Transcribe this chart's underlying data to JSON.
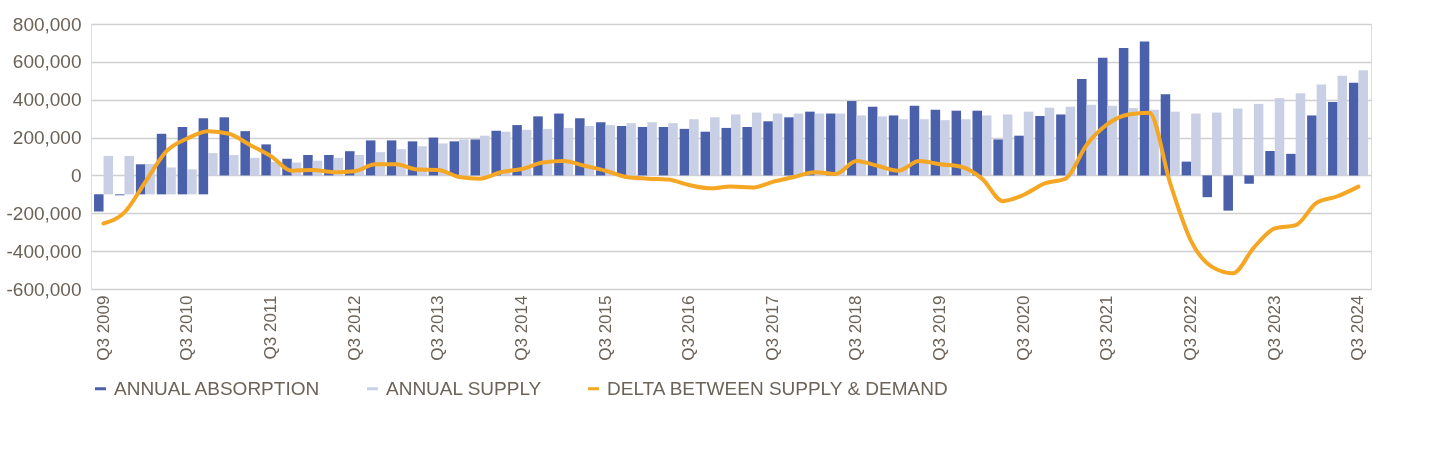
{
  "chart_data": {
    "type": "bar",
    "categories": [
      "Q3 2009",
      null,
      null,
      null,
      "Q3 2010",
      null,
      null,
      null,
      "Q3 2011",
      null,
      null,
      null,
      "Q3 2012",
      null,
      null,
      null,
      "Q3 2013",
      null,
      null,
      null,
      "Q3 2014",
      null,
      null,
      null,
      "Q3 2015",
      null,
      null,
      null,
      "Q3 2016",
      null,
      null,
      null,
      "Q3 2017",
      null,
      null,
      null,
      "Q3 2018",
      null,
      null,
      null,
      "Q3 2019",
      null,
      null,
      null,
      "Q3 2020",
      null,
      null,
      null,
      "Q3 2021",
      null,
      null,
      null,
      "Q3 2022",
      null,
      null,
      null,
      "Q3 2023",
      null,
      null,
      null,
      "Q3 2024"
    ],
    "series": [
      {
        "name": "ANNUAL ABSORPTION",
        "type": "bar",
        "color": "#4a60ab",
        "base": [
          -100000,
          -100000,
          -100000,
          -100000,
          -100000,
          -100000,
          0,
          0,
          0,
          0,
          0,
          0,
          0,
          0,
          0,
          0,
          0,
          0,
          0,
          0,
          0,
          0,
          0,
          0,
          0,
          0,
          0,
          0,
          0,
          0,
          0,
          0,
          0,
          0,
          0,
          0,
          0,
          0,
          0,
          0,
          0,
          0,
          0,
          0,
          0,
          0,
          0,
          0,
          0,
          0,
          0,
          0,
          0,
          0,
          0,
          0,
          0,
          0,
          0,
          0,
          0
        ],
        "values": [
          -90000,
          -5000,
          159000,
          320000,
          356000,
          402000,
          307000,
          234000,
          164000,
          88000,
          108000,
          108000,
          128000,
          185000,
          185000,
          180000,
          200000,
          180000,
          190000,
          236000,
          266000,
          312000,
          327000,
          302000,
          281000,
          261000,
          256000,
          256000,
          246000,
          231000,
          251000,
          256000,
          286000,
          307000,
          337000,
          327000,
          393000,
          363000,
          317000,
          368000,
          347000,
          342000,
          342000,
          190000,
          210000,
          314000,
          322000,
          510000,
          622000,
          673000,
          708000,
          429000,
          73000,
          -115000,
          -186000,
          -44000,
          129000,
          114000,
          317000,
          388000,
          490000
        ]
      },
      {
        "name": "ANNUAL SUPPLY",
        "type": "bar",
        "color": "#c9cfe4",
        "base": [
          -100000,
          -100000,
          -100000,
          -100000,
          -100000,
          0,
          0,
          0,
          0,
          0,
          0,
          0,
          0,
          0,
          0,
          0,
          0,
          0,
          0,
          0,
          0,
          0,
          0,
          0,
          0,
          0,
          0,
          0,
          0,
          0,
          0,
          0,
          0,
          0,
          0,
          0,
          0,
          0,
          0,
          0,
          0,
          0,
          0,
          0,
          0,
          0,
          0,
          0,
          0,
          0,
          0,
          0,
          0,
          0,
          0,
          0,
          0,
          0,
          0,
          0,
          0
        ],
        "values": [
          203000,
          203000,
          160000,
          142000,
          132000,
          118000,
          108000,
          93000,
          72000,
          68000,
          78000,
          93000,
          108000,
          123000,
          139000,
          154000,
          169000,
          190000,
          210000,
          231000,
          241000,
          246000,
          251000,
          261000,
          266000,
          276000,
          281000,
          276000,
          297000,
          307000,
          322000,
          332000,
          327000,
          327000,
          327000,
          327000,
          317000,
          312000,
          297000,
          297000,
          292000,
          297000,
          317000,
          322000,
          337000,
          358000,
          363000,
          373000,
          368000,
          356000,
          347000,
          337000,
          327000,
          332000,
          353000,
          378000,
          408000,
          434000,
          480000,
          527000,
          556000
        ]
      },
      {
        "name": "DELTA BETWEEN SUPPLY & DEMAND",
        "type": "line",
        "color": "#f5a623",
        "values": [
          -254000,
          -195000,
          -34000,
          127000,
          195000,
          234000,
          220000,
          161000,
          102000,
          25000,
          29000,
          17000,
          22000,
          59000,
          59000,
          31000,
          29000,
          -8000,
          -17000,
          17000,
          34000,
          68000,
          76000,
          51000,
          25000,
          -8000,
          -17000,
          -22000,
          -51000,
          -68000,
          -59000,
          -64000,
          -34000,
          -8000,
          17000,
          8000,
          76000,
          51000,
          25000,
          76000,
          59000,
          46000,
          -17000,
          -136000,
          -102000,
          -42000,
          -17000,
          161000,
          271000,
          322000,
          331000,
          -42000,
          -347000,
          -483000,
          -517000,
          -381000,
          -280000,
          -263000,
          -144000,
          -110000,
          -59000
        ]
      }
    ],
    "ylim": [
      -600000,
      800000
    ],
    "yticks": [
      {
        "value": -600000,
        "label": "-600,000"
      },
      {
        "value": -400000,
        "label": "-400,000"
      },
      {
        "value": -200000,
        "label": "-200,000"
      },
      0,
      {
        "value": 200000,
        "label": "200,000"
      },
      {
        "value": 400000,
        "label": "400,000"
      },
      {
        "value": 600000,
        "label": "600,000"
      },
      {
        "value": 800000,
        "label": "800,000"
      }
    ],
    "grid": "y",
    "legend": "bottom",
    "line_style": "solid",
    "marker": "none"
  }
}
